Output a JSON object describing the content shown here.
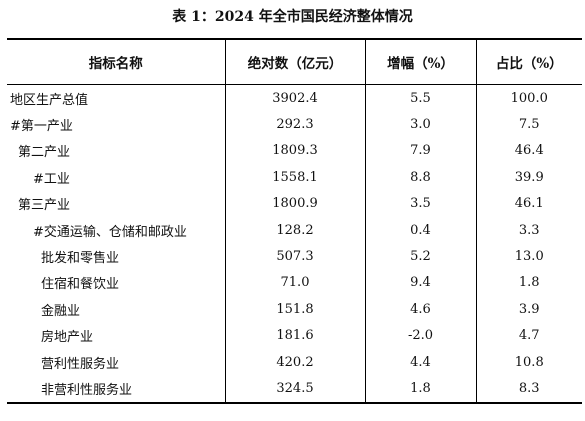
{
  "caption": "表 1：2024 年全市国民经济整体情况",
  "table": {
    "headers": [
      "指标名称",
      "绝对数（亿元）",
      "增幅（%）",
      "占比（%）"
    ],
    "rows": [
      {
        "name": "地区生产总值",
        "value": "3902.4",
        "growth": "5.5",
        "share": "100.0"
      },
      {
        "name": "#第一产业",
        "value": "292.3",
        "growth": "3.0",
        "share": "7.5"
      },
      {
        "name": "第二产业",
        "value": "1809.3",
        "growth": "7.9",
        "share": "46.4"
      },
      {
        "name": "#工业",
        "value": "1558.1",
        "growth": "8.8",
        "share": "39.9"
      },
      {
        "name": "第三产业",
        "value": "1800.9",
        "growth": "3.5",
        "share": "46.1"
      },
      {
        "name": "#交通运输、仓储和邮政业",
        "value": "128.2",
        "growth": "0.4",
        "share": "3.3"
      },
      {
        "name": "批发和零售业",
        "value": "507.3",
        "growth": "5.2",
        "share": "13.0"
      },
      {
        "name": "住宿和餐饮业",
        "value": "71.0",
        "growth": "9.4",
        "share": "1.8"
      },
      {
        "name": "金融业",
        "value": "151.8",
        "growth": "4.6",
        "share": "3.9"
      },
      {
        "name": "房地产业",
        "value": "181.6",
        "growth": "-2.0",
        "share": "4.7"
      },
      {
        "name": "营利性服务业",
        "value": "420.2",
        "growth": "4.4",
        "share": "10.8"
      },
      {
        "name": "非营利性服务业",
        "value": "324.5",
        "growth": "1.8",
        "share": "8.3"
      }
    ]
  }
}
